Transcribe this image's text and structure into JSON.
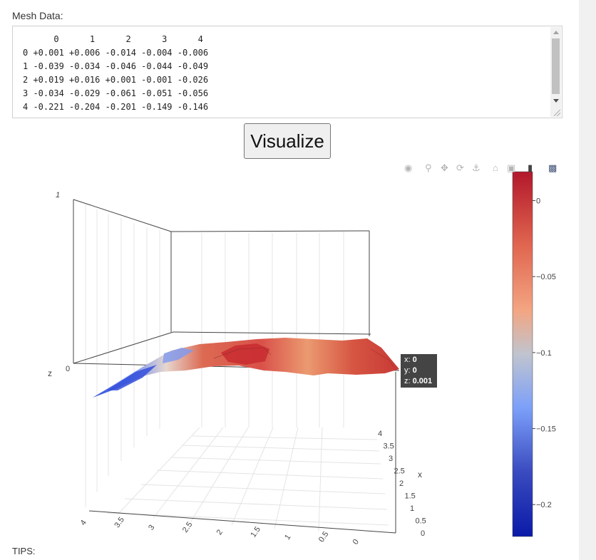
{
  "mesh": {
    "label": "Mesh Data:",
    "table_text": "      0      1      2      3      4\n0 +0.001 +0.006 -0.014 -0.004 -0.006\n1 -0.039 -0.034 -0.046 -0.044 -0.049\n2 +0.019 +0.016 +0.001 -0.001 -0.026\n3 -0.034 -0.029 -0.061 -0.051 -0.056\n4 -0.221 -0.204 -0.201 -0.149 -0.146"
  },
  "visualize_button": {
    "label": "Visualize"
  },
  "modebar": {
    "icons": [
      "camera-icon",
      "zoom-icon",
      "pan-icon",
      "orbit-rotation-icon",
      "turntable-rotation-icon",
      "home-icon",
      "reset-camera-icon",
      "hover-toggle-icon",
      "plotly-logo-icon"
    ]
  },
  "hover": {
    "x_label": "x:",
    "x": "0",
    "y_label": "y:",
    "y": "0",
    "z_label": "z:",
    "z": "0.001"
  },
  "tips": {
    "label": "TIPS:"
  },
  "colors": {
    "surface_high": "#b2182b",
    "surface_mid": "#d6604d",
    "surface_peach": "#f4a582",
    "surface_neutral": "#c8c8c8",
    "surface_light_blue": "#6e8ef5",
    "surface_low": "#0a1aa8",
    "hover_bg": "#444444"
  },
  "chart_data": {
    "type": "surface",
    "x": [
      0,
      1,
      2,
      3,
      4
    ],
    "y": [
      0,
      1,
      2,
      3,
      4
    ],
    "z": [
      [
        0.001,
        0.006,
        -0.014,
        -0.004,
        -0.006
      ],
      [
        -0.039,
        -0.034,
        -0.046,
        -0.044,
        -0.049
      ],
      [
        0.019,
        0.016,
        0.001,
        -0.001,
        -0.026
      ],
      [
        -0.034,
        -0.029,
        -0.061,
        -0.051,
        -0.056
      ],
      [
        -0.221,
        -0.204,
        -0.201,
        -0.149,
        -0.146
      ]
    ],
    "xlabel": "x",
    "ylabel": "",
    "zlabel": "z",
    "z_ticks": [
      "0",
      "1"
    ],
    "x_ticks": [
      "0",
      "0.5",
      "1",
      "1.5",
      "2",
      "2.5",
      "3",
      "3.5",
      "4"
    ],
    "y_ticks": [
      "4",
      "3.5",
      "3",
      "2.5",
      "2",
      "1.5",
      "1",
      "0.5",
      "0"
    ],
    "colorbar": {
      "ticks": [
        "0",
        "−0.05",
        "−0.1",
        "−0.15",
        "−0.2"
      ],
      "tick_values": [
        0,
        -0.05,
        -0.1,
        -0.15,
        -0.2
      ],
      "range": [
        -0.221,
        0.019
      ],
      "colorscale": "coolwarm"
    },
    "grid": true
  }
}
